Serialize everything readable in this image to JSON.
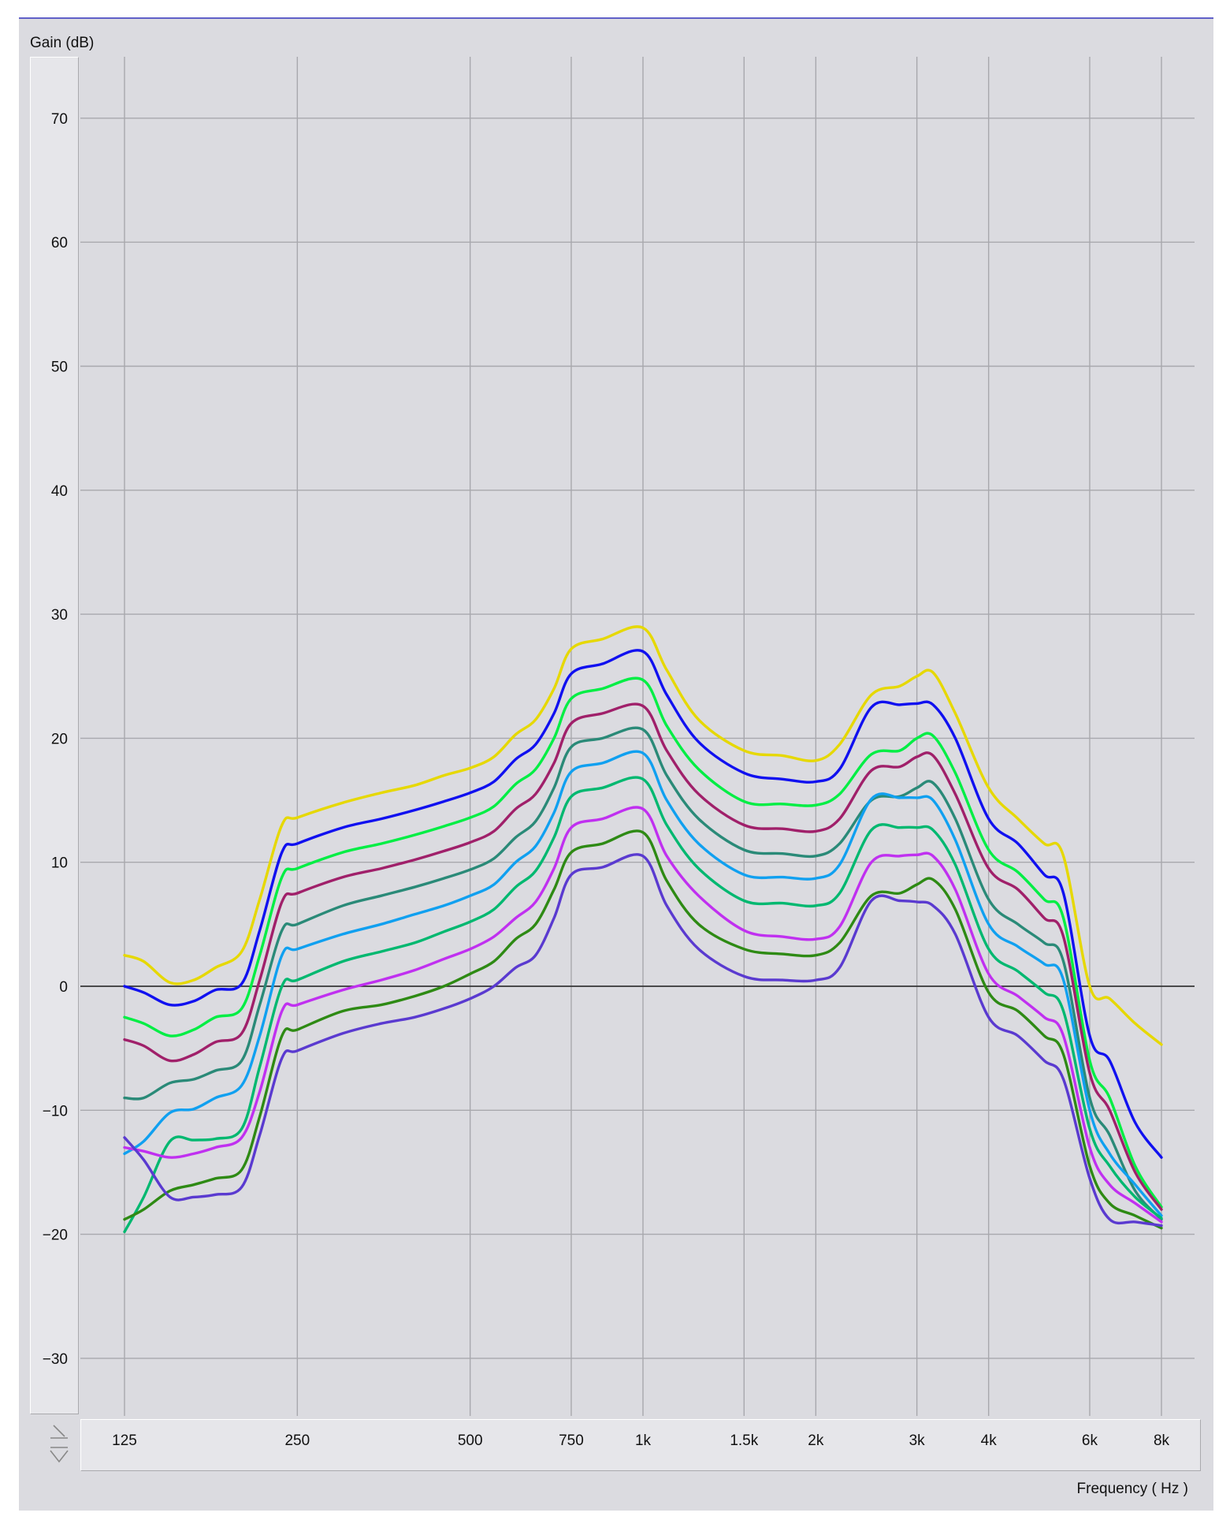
{
  "chart_data": {
    "type": "line",
    "title": "",
    "ylabel": "Gain (dB)",
    "xlabel": "Frequency ( Hz )",
    "x_scale": "log",
    "xlim": [
      125,
      8000
    ],
    "ylim": [
      -35,
      75
    ],
    "yticks": [
      70,
      60,
      50,
      40,
      30,
      20,
      10,
      0,
      -10,
      -20,
      -30
    ],
    "ytick_labels": [
      "70",
      "60",
      "50",
      "40",
      "30",
      "20",
      "10",
      "0",
      "−10",
      "−20",
      "−30"
    ],
    "xticks": [
      125,
      250,
      500,
      750,
      1000,
      1500,
      2000,
      3000,
      4000,
      6000,
      8000
    ],
    "xtick_labels": [
      "125",
      "250",
      "500",
      "750",
      "1k",
      "1.5k",
      "2k",
      "3k",
      "4k",
      "6k",
      "8k"
    ],
    "grid": true,
    "zero_line": true,
    "x": [
      125,
      135,
      150,
      165,
      180,
      200,
      215,
      235,
      250,
      300,
      350,
      400,
      450,
      500,
      550,
      600,
      650,
      700,
      750,
      850,
      1000,
      1100,
      1250,
      1500,
      1750,
      2000,
      2200,
      2500,
      2800,
      3000,
      3200,
      3500,
      4000,
      4500,
      5000,
      5400,
      6000,
      6500,
      7200,
      8000
    ],
    "series": [
      {
        "color": "#e6d800",
        "values": [
          2.5,
          2.0,
          0.3,
          0.5,
          1.5,
          2.8,
          7.0,
          13.0,
          13.6,
          14.8,
          15.6,
          16.2,
          17.0,
          17.6,
          18.5,
          20.3,
          21.5,
          24.0,
          27.2,
          28.0,
          28.9,
          25.5,
          21.5,
          19.0,
          18.6,
          18.2,
          19.5,
          23.5,
          24.2,
          25.0,
          25.3,
          22.0,
          16.0,
          13.5,
          11.5,
          10.5,
          0.0,
          -1.0,
          -3.0,
          -4.7
        ]
      },
      {
        "color": "#1010f0",
        "values": [
          0.0,
          -0.5,
          -1.5,
          -1.2,
          -0.3,
          0.2,
          4.5,
          10.8,
          11.5,
          12.8,
          13.5,
          14.2,
          14.9,
          15.6,
          16.5,
          18.3,
          19.5,
          22.0,
          25.2,
          26.0,
          27.0,
          23.5,
          19.7,
          17.2,
          16.7,
          16.5,
          17.5,
          22.5,
          22.7,
          22.8,
          22.7,
          20.0,
          13.5,
          11.5,
          9.0,
          7.5,
          -4.0,
          -6.0,
          -11.0,
          -13.8
        ]
      },
      {
        "color": "#00ee44",
        "values": [
          -2.5,
          -3.0,
          -4.0,
          -3.5,
          -2.5,
          -1.8,
          2.5,
          8.8,
          9.5,
          10.8,
          11.5,
          12.2,
          12.9,
          13.6,
          14.5,
          16.3,
          17.5,
          20.0,
          23.2,
          24.0,
          24.7,
          21.0,
          17.5,
          14.9,
          14.7,
          14.6,
          15.5,
          18.7,
          19.0,
          20.0,
          20.2,
          17.2,
          11.0,
          9.2,
          7.0,
          5.5,
          -6.0,
          -9.0,
          -14.5,
          -17.8
        ]
      },
      {
        "color": "#a0206a",
        "values": [
          -4.3,
          -4.8,
          -6.0,
          -5.5,
          -4.5,
          -3.8,
          0.5,
          6.8,
          7.5,
          8.8,
          9.5,
          10.2,
          10.9,
          11.6,
          12.5,
          14.3,
          15.5,
          18.0,
          21.2,
          22.0,
          22.6,
          19.0,
          15.5,
          13.0,
          12.7,
          12.5,
          13.5,
          17.4,
          17.7,
          18.5,
          18.6,
          15.5,
          9.5,
          7.8,
          5.5,
          4.0,
          -7.0,
          -10.0,
          -15.0,
          -18.0
        ]
      },
      {
        "color": "#2a8a78",
        "values": [
          -9.0,
          -9.0,
          -7.8,
          -7.5,
          -6.8,
          -6.0,
          -1.5,
          4.5,
          5.0,
          6.5,
          7.3,
          8.0,
          8.7,
          9.4,
          10.3,
          12.0,
          13.3,
          16.0,
          19.3,
          20.0,
          20.7,
          17.0,
          13.5,
          11.0,
          10.7,
          10.5,
          11.5,
          15.0,
          15.3,
          16.0,
          16.4,
          13.5,
          7.0,
          5.0,
          3.5,
          2.0,
          -9.0,
          -12.0,
          -16.5,
          -18.8
        ]
      },
      {
        "color": "#10a0f0",
        "values": [
          -13.5,
          -12.5,
          -10.2,
          -9.9,
          -9.0,
          -8.0,
          -4.0,
          2.5,
          3.0,
          4.2,
          5.0,
          5.8,
          6.5,
          7.3,
          8.2,
          10.0,
          11.3,
          14.0,
          17.3,
          18.0,
          18.8,
          15.0,
          11.5,
          9.0,
          8.8,
          8.7,
          9.8,
          15.1,
          15.2,
          15.2,
          15.0,
          11.8,
          5.0,
          3.2,
          1.8,
          0.5,
          -10.0,
          -13.5,
          -16.0,
          -18.5
        ]
      },
      {
        "color": "#00b870",
        "values": [
          -19.8,
          -17.0,
          -12.5,
          -12.4,
          -12.3,
          -11.5,
          -6.5,
          0.0,
          0.5,
          2.0,
          2.8,
          3.5,
          4.4,
          5.2,
          6.2,
          8.0,
          9.3,
          12.0,
          15.3,
          16.0,
          16.7,
          13.0,
          9.5,
          6.9,
          6.7,
          6.5,
          7.5,
          12.6,
          12.8,
          12.8,
          12.6,
          9.8,
          3.0,
          1.2,
          -0.5,
          -2.0,
          -11.5,
          -14.5,
          -17.0,
          -18.7
        ]
      },
      {
        "color": "#c030f0",
        "values": [
          -13.0,
          -13.3,
          -13.8,
          -13.5,
          -13.0,
          -12.2,
          -8.5,
          -2.0,
          -1.5,
          -0.3,
          0.5,
          1.3,
          2.2,
          3.0,
          4.0,
          5.5,
          6.8,
          9.5,
          12.8,
          13.5,
          14.3,
          10.5,
          7.3,
          4.5,
          4.0,
          3.8,
          4.8,
          10.0,
          10.5,
          10.6,
          10.5,
          7.8,
          1.0,
          -0.8,
          -2.5,
          -4.0,
          -13.0,
          -16.0,
          -17.5,
          -19.0
        ]
      },
      {
        "color": "#2e8a14",
        "values": [
          -18.8,
          -18.0,
          -16.5,
          -16.0,
          -15.5,
          -14.8,
          -10.5,
          -4.0,
          -3.5,
          -2.0,
          -1.5,
          -0.8,
          0.0,
          1.0,
          2.0,
          3.8,
          5.0,
          7.8,
          10.8,
          11.5,
          12.4,
          8.5,
          5.0,
          3.0,
          2.6,
          2.5,
          3.5,
          7.3,
          7.5,
          8.2,
          8.6,
          6.2,
          -0.5,
          -2.0,
          -4.0,
          -5.5,
          -14.5,
          -17.5,
          -18.5,
          -19.5
        ]
      },
      {
        "color": "#5a3ad0",
        "values": [
          -12.2,
          -14.0,
          -17.0,
          -17.0,
          -16.8,
          -16.2,
          -12.0,
          -5.8,
          -5.2,
          -3.8,
          -3.0,
          -2.5,
          -1.8,
          -1.0,
          0.0,
          1.5,
          2.5,
          5.5,
          9.0,
          9.6,
          10.5,
          6.5,
          3.0,
          0.8,
          0.5,
          0.5,
          1.5,
          6.9,
          6.9,
          6.8,
          6.5,
          4.2,
          -2.5,
          -4.0,
          -6.0,
          -7.5,
          -15.5,
          -18.8,
          -19.0,
          -19.3
        ]
      }
    ]
  }
}
